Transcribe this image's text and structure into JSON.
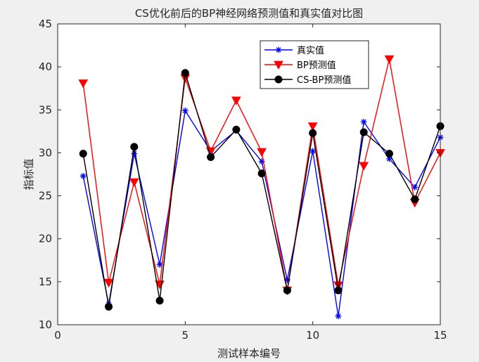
{
  "chart_data": {
    "type": "line",
    "title": "CS优化前后的BP神经网络预测值和真实值对比图",
    "xlabel": "测试样本编号",
    "ylabel": "指标值",
    "xlim": [
      0,
      15
    ],
    "ylim": [
      10,
      45
    ],
    "xticks": [
      "0",
      "5",
      "10",
      "15"
    ],
    "yticks": [
      "10",
      "15",
      "20",
      "25",
      "30",
      "35",
      "40",
      "45"
    ],
    "legend_position": "top-right",
    "grid": false,
    "x": [
      1,
      2,
      3,
      4,
      5,
      6,
      7,
      8,
      9,
      10,
      11,
      12,
      13,
      14,
      15
    ],
    "series": [
      {
        "name": "真实值",
        "color": "#0000ff",
        "marker": "asterisk",
        "values": [
          27.3,
          12.4,
          29.9,
          17.0,
          34.9,
          30.2,
          32.6,
          29.0,
          15.2,
          30.2,
          11.0,
          33.6,
          29.3,
          26.0,
          31.8
        ]
      },
      {
        "name": "BP预测值",
        "color": "#ff0000",
        "marker": "triangle-down",
        "values": [
          38.1,
          14.9,
          26.6,
          14.7,
          38.7,
          30.2,
          36.1,
          30.1,
          14.0,
          33.1,
          14.6,
          28.5,
          40.9,
          24.2,
          30.0
        ]
      },
      {
        "name": "CS-BP预测值",
        "color": "#000000",
        "marker": "circle",
        "values": [
          29.9,
          12.1,
          30.7,
          12.8,
          39.3,
          29.5,
          32.7,
          27.6,
          14.0,
          32.3,
          14.0,
          32.4,
          29.9,
          24.6,
          33.1
        ]
      }
    ]
  }
}
